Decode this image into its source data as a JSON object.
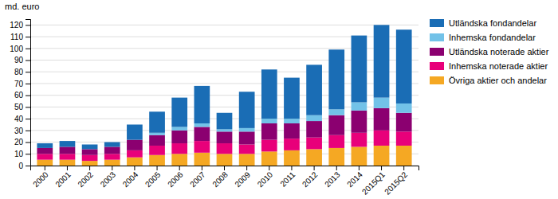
{
  "chart_data": {
    "type": "bar",
    "stacked": true,
    "ylabel": "md. euro",
    "categories": [
      "2000",
      "2001",
      "2002",
      "2003",
      "2004",
      "2005",
      "2006",
      "2007",
      "2008",
      "2009",
      "2010",
      "2011",
      "2012",
      "2013",
      "2014",
      "2015Q1",
      "2015Q2"
    ],
    "series": [
      {
        "name": "Övriga aktier och andelar",
        "color": "#f5a823",
        "values": [
          5,
          5,
          4,
          5,
          7,
          9,
          10,
          11,
          10,
          10,
          12,
          13,
          14,
          15,
          16,
          17,
          17
        ]
      },
      {
        "name": "Inhemska noterade aktier",
        "color": "#e8007a",
        "values": [
          5,
          5,
          5,
          5,
          6,
          8,
          9,
          10,
          9,
          8,
          10,
          10,
          10,
          11,
          12,
          13,
          12
        ]
      },
      {
        "name": "Utländska noterade aktier",
        "color": "#8b0070",
        "values": [
          5,
          6,
          5,
          6,
          9,
          9,
          11,
          12,
          10,
          11,
          14,
          13,
          14,
          17,
          19,
          19,
          16
        ]
      },
      {
        "name": "Inhemska fondandelar",
        "color": "#72c2e8",
        "values": [
          0,
          0,
          0,
          0,
          0,
          2,
          3,
          3,
          2,
          3,
          4,
          4,
          5,
          5,
          7,
          9,
          8
        ]
      },
      {
        "name": "Utländska fondandelar",
        "color": "#1a6db5",
        "values": [
          4,
          5,
          4,
          4,
          13,
          18,
          25,
          32,
          14,
          31,
          42,
          35,
          43,
          51,
          57,
          62,
          63
        ]
      }
    ],
    "ylim": [
      0,
      125
    ],
    "yticks": [
      0,
      10,
      20,
      30,
      40,
      50,
      60,
      70,
      80,
      90,
      100,
      110,
      120
    ],
    "grid": true,
    "legend": "right"
  }
}
